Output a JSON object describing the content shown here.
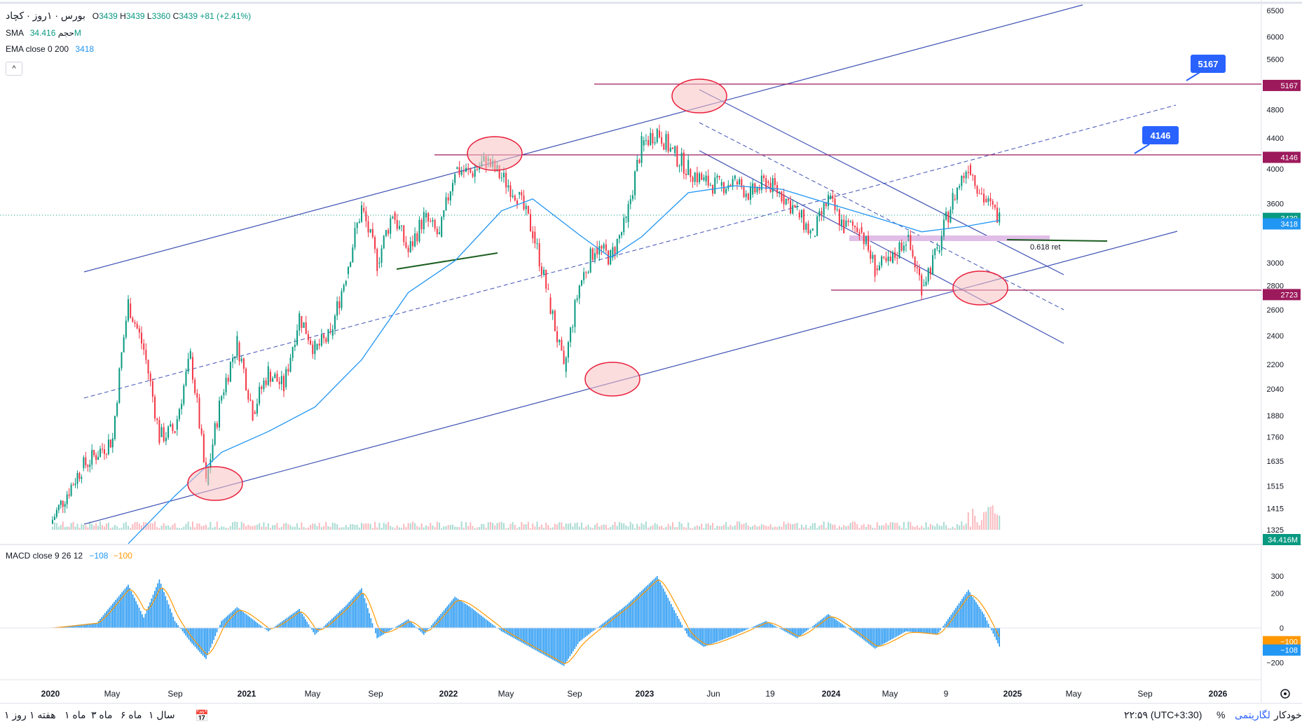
{
  "header": {
    "symbol_line": "بورس · ۱روز · کچاد",
    "ohlc": {
      "o_label": "O",
      "o": "3439",
      "h_label": "H",
      "h": "3439",
      "l_label": "L",
      "l": "3360",
      "c_label": "C",
      "c": "3439",
      "change": "+81 (+2.41%)"
    },
    "volume_label": "SMA حجم",
    "volume_value": "34.416M",
    "ema_label": "EMA close 0 200",
    "ema_value": "3418",
    "collapse_icon": "chevron-up-icon"
  },
  "macd_legend": {
    "label": "MACD close 9 26 12",
    "macd": "−108",
    "signal": "−100"
  },
  "colors": {
    "up": "#089981",
    "down": "#f23645",
    "channel": "#3f51b5",
    "level": "#9c1a5c",
    "ema": "#2196f3",
    "macd": "#2196f3",
    "signal": "#ff9800",
    "circle_fill": "#f8c1c1",
    "circle_stroke": "#e91e3b",
    "fib_zone": "#e1bee7",
    "support": "#1b5e20"
  },
  "chart_data": [
    {
      "type": "candlestick",
      "title": "",
      "scale": "log",
      "ylim": [
        1250,
        6700
      ],
      "y_ticks": [
        "6500",
        "6000",
        "5600",
        "5167",
        "4800",
        "4400",
        "4146",
        "4000",
        "3600",
        "3439",
        "3418",
        "3000",
        "2800",
        "2723",
        "2600",
        "2400",
        "2200",
        "2040",
        "1880",
        "1760",
        "1635",
        "1515",
        "1415",
        "1325",
        "34.416M"
      ],
      "x_ticks": [
        "2020",
        "May",
        "Sep",
        "2021",
        "May",
        "Sep",
        "2022",
        "May",
        "Sep",
        "2023",
        "Jun",
        "19",
        "2024",
        "May",
        "9",
        "2025",
        "May",
        "Sep",
        "2026"
      ],
      "close_series": [
        {
          "d": "2020-01",
          "v": 1350
        },
        {
          "d": "2020-03",
          "v": 1600
        },
        {
          "d": "2020-05",
          "v": 1750
        },
        {
          "d": "2020-06",
          "v": 2650
        },
        {
          "d": "2020-07",
          "v": 2300
        },
        {
          "d": "2020-08",
          "v": 1760
        },
        {
          "d": "2020-09",
          "v": 1800
        },
        {
          "d": "2020-10",
          "v": 2250
        },
        {
          "d": "2020-11",
          "v": 1520
        },
        {
          "d": "2020-12",
          "v": 2000
        },
        {
          "d": "2021-01",
          "v": 2350
        },
        {
          "d": "2021-02",
          "v": 1900
        },
        {
          "d": "2021-03",
          "v": 2150
        },
        {
          "d": "2021-04",
          "v": 2050
        },
        {
          "d": "2021-05",
          "v": 2550
        },
        {
          "d": "2021-06",
          "v": 2300
        },
        {
          "d": "2021-07",
          "v": 2400
        },
        {
          "d": "2021-08",
          "v": 2900
        },
        {
          "d": "2021-09",
          "v": 3550
        },
        {
          "d": "2021-10",
          "v": 3000
        },
        {
          "d": "2021-11",
          "v": 3500
        },
        {
          "d": "2021-12",
          "v": 3100
        },
        {
          "d": "2022-01",
          "v": 3450
        },
        {
          "d": "2022-02",
          "v": 3250
        },
        {
          "d": "2022-03",
          "v": 4000
        },
        {
          "d": "2022-04",
          "v": 3950
        },
        {
          "d": "2022-05",
          "v": 4100
        },
        {
          "d": "2022-06",
          "v": 3900
        },
        {
          "d": "2022-07",
          "v": 3700
        },
        {
          "d": "2022-08",
          "v": 3300
        },
        {
          "d": "2022-09",
          "v": 2700
        },
        {
          "d": "2022-10",
          "v": 2150
        },
        {
          "d": "2022-11",
          "v": 2800
        },
        {
          "d": "2022-12",
          "v": 3150
        },
        {
          "d": "2023-01",
          "v": 3050
        },
        {
          "d": "2023-02",
          "v": 3400
        },
        {
          "d": "2023-03",
          "v": 4300
        },
        {
          "d": "2023-04",
          "v": 4500
        },
        {
          "d": "2023-05",
          "v": 4200
        },
        {
          "d": "2023-06",
          "v": 4000
        },
        {
          "d": "2023-07",
          "v": 3850
        },
        {
          "d": "2023-08",
          "v": 3800
        },
        {
          "d": "2023-09",
          "v": 3850
        },
        {
          "d": "2023-10",
          "v": 3700
        },
        {
          "d": "2023-11",
          "v": 3850
        },
        {
          "d": "2023-12",
          "v": 3700
        },
        {
          "d": "2024-01",
          "v": 3500
        },
        {
          "d": "2024-02",
          "v": 3250
        },
        {
          "d": "2024-03",
          "v": 3650
        },
        {
          "d": "2024-04",
          "v": 3350
        },
        {
          "d": "2024-05",
          "v": 3350
        },
        {
          "d": "2024-06",
          "v": 2950
        },
        {
          "d": "2024-07",
          "v": 3000
        },
        {
          "d": "2024-08",
          "v": 3250
        },
        {
          "d": "2024-09",
          "v": 2800
        },
        {
          "d": "2024-10",
          "v": 3100
        },
        {
          "d": "2024-11",
          "v": 3650
        },
        {
          "d": "2024-12",
          "v": 4050
        },
        {
          "d": "2025-01",
          "v": 3650
        },
        {
          "d": "2025-02",
          "v": 3439
        }
      ],
      "ema_200": [
        {
          "d": "2020-06",
          "v": 1270
        },
        {
          "d": "2020-09",
          "v": 1470
        },
        {
          "d": "2020-12",
          "v": 1680
        },
        {
          "d": "2021-03",
          "v": 1790
        },
        {
          "d": "2021-06",
          "v": 1930
        },
        {
          "d": "2021-09",
          "v": 2230
        },
        {
          "d": "2021-12",
          "v": 2740
        },
        {
          "d": "2022-03",
          "v": 3020
        },
        {
          "d": "2022-06",
          "v": 3520
        },
        {
          "d": "2022-08",
          "v": 3650
        },
        {
          "d": "2022-11",
          "v": 3270
        },
        {
          "d": "2023-01",
          "v": 3050
        },
        {
          "d": "2023-03",
          "v": 3250
        },
        {
          "d": "2023-06",
          "v": 3720
        },
        {
          "d": "2023-09",
          "v": 3800
        },
        {
          "d": "2023-12",
          "v": 3760
        },
        {
          "d": "2024-03",
          "v": 3600
        },
        {
          "d": "2024-06",
          "v": 3450
        },
        {
          "d": "2024-09",
          "v": 3300
        },
        {
          "d": "2024-12",
          "v": 3360
        },
        {
          "d": "2025-02",
          "v": 3418
        }
      ],
      "horizontal_levels": [
        {
          "value": 5167,
          "label": "5167",
          "callout": "5167"
        },
        {
          "value": 4146,
          "label": "4146",
          "callout": "4146"
        },
        {
          "value": 2723,
          "label": "2723"
        }
      ],
      "current_price_labels": [
        {
          "value": 3439,
          "label": "3439",
          "color": "#089981"
        },
        {
          "value": 3418,
          "label": "3418",
          "color": "#2196f3"
        }
      ],
      "volume_label": "34.416M",
      "annotation_text": "0.618 ret"
    },
    {
      "type": "bar",
      "title": "MACD close 9 26 12",
      "ylim": [
        -280,
        350
      ],
      "y_ticks": [
        "300",
        "200",
        "0",
        "−100",
        "−108",
        "−200"
      ],
      "macd_series": [
        {
          "d": "2020-01",
          "v": 0
        },
        {
          "d": "2020-04",
          "v": 30
        },
        {
          "d": "2020-06",
          "v": 250
        },
        {
          "d": "2020-07",
          "v": 60
        },
        {
          "d": "2020-08",
          "v": 280
        },
        {
          "d": "2020-09",
          "v": 40
        },
        {
          "d": "2020-10",
          "v": -80
        },
        {
          "d": "2020-11",
          "v": -180
        },
        {
          "d": "2020-12",
          "v": 40
        },
        {
          "d": "2021-01",
          "v": 120
        },
        {
          "d": "2021-03",
          "v": -20
        },
        {
          "d": "2021-05",
          "v": 110
        },
        {
          "d": "2021-06",
          "v": -40
        },
        {
          "d": "2021-08",
          "v": 130
        },
        {
          "d": "2021-09",
          "v": 230
        },
        {
          "d": "2021-10",
          "v": -60
        },
        {
          "d": "2021-12",
          "v": 50
        },
        {
          "d": "2022-01",
          "v": -40
        },
        {
          "d": "2022-03",
          "v": 180
        },
        {
          "d": "2022-04",
          "v": 120
        },
        {
          "d": "2022-06",
          "v": -20
        },
        {
          "d": "2022-08",
          "v": -120
        },
        {
          "d": "2022-10",
          "v": -220
        },
        {
          "d": "2022-11",
          "v": -80
        },
        {
          "d": "2023-01",
          "v": 60
        },
        {
          "d": "2023-02",
          "v": 130
        },
        {
          "d": "2023-04",
          "v": 300
        },
        {
          "d": "2023-05",
          "v": 120
        },
        {
          "d": "2023-06",
          "v": -50
        },
        {
          "d": "2023-07",
          "v": -110
        },
        {
          "d": "2023-09",
          "v": -40
        },
        {
          "d": "2023-11",
          "v": 40
        },
        {
          "d": "2024-01",
          "v": -60
        },
        {
          "d": "2024-03",
          "v": 80
        },
        {
          "d": "2024-05",
          "v": -50
        },
        {
          "d": "2024-06",
          "v": -120
        },
        {
          "d": "2024-08",
          "v": -20
        },
        {
          "d": "2024-10",
          "v": -40
        },
        {
          "d": "2024-12",
          "v": 220
        },
        {
          "d": "2025-01",
          "v": 80
        },
        {
          "d": "2025-02",
          "v": -108
        }
      ],
      "signal_value": -100,
      "macd_value": -108
    }
  ],
  "bottom_bar": {
    "timeframes": [
      "روز ۱",
      "هفته ۱",
      "ماه ۱",
      "ماه ۳",
      "ماه ۶",
      "سال ۱"
    ],
    "calendar_icon": "calendar-arrow-icon",
    "clock": "۲۲:۵۹ (UTC+3:30)",
    "percent": "%",
    "log": "لگاریتمی",
    "auto": "خودکار",
    "settings_icon": "gear-icon"
  }
}
